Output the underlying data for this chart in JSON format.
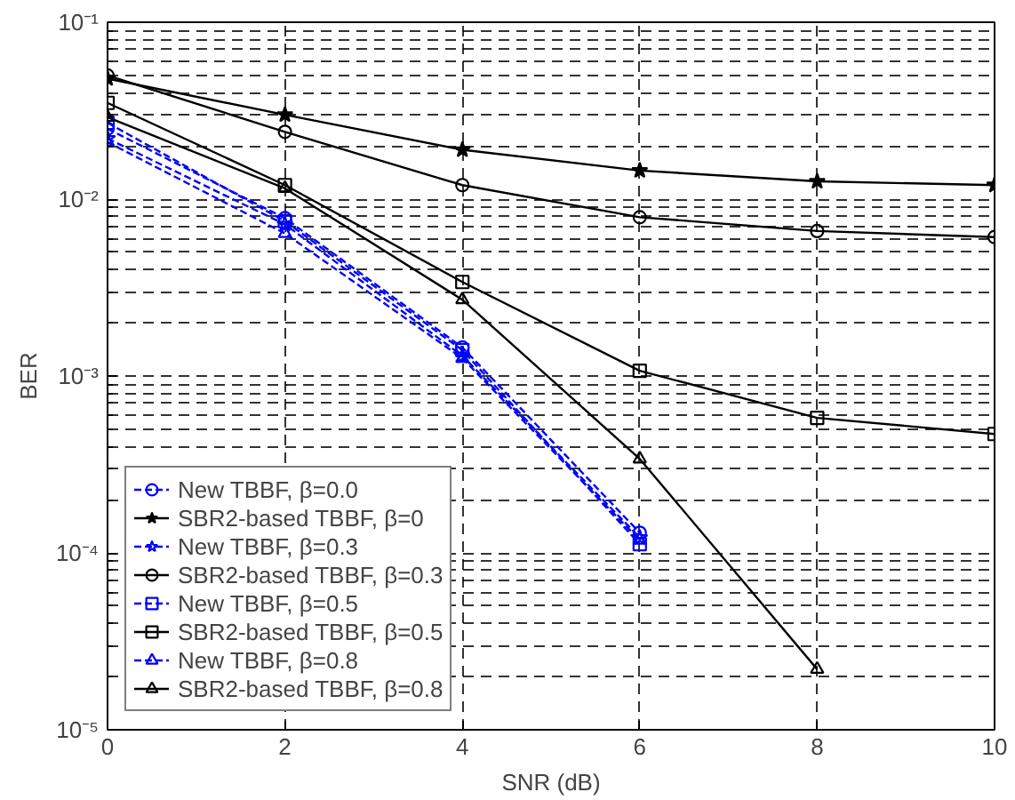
{
  "chart_data": {
    "type": "line",
    "xlabel": "SNR (dB)",
    "ylabel": "BER",
    "log": "y",
    "grid": true,
    "legend": "bottom left",
    "line_style": "solid",
    "x": [
      0,
      2,
      4,
      6,
      8,
      10
    ],
    "xlim": [
      0,
      10
    ],
    "xticks": [
      0,
      2,
      4,
      6,
      8,
      10
    ],
    "ylim": [
      1e-05,
      0.1
    ],
    "yticks": [
      {
        "value": 1e-05,
        "label": "10⁻⁵"
      },
      {
        "value": 0.0001,
        "label": "10⁻⁴"
      },
      {
        "value": 0.001,
        "label": "10⁻³"
      },
      {
        "value": 0.01,
        "label": "10⁻²"
      },
      {
        "value": 0.1,
        "label": "10⁻¹"
      }
    ],
    "series": [
      {
        "name": "New TBBF, β=0.0",
        "color": "#0000ff",
        "marker": "circle",
        "line_style": "dashed",
        "values": [
          0.025,
          0.0078,
          0.00145,
          0.00013,
          null,
          null
        ]
      },
      {
        "name": "SBR2-based TBBF, β=0",
        "color": "#000000",
        "marker": "star",
        "values": [
          0.048,
          0.03,
          0.019,
          0.0145,
          0.0126,
          0.012
        ]
      },
      {
        "name": "New TBBF, β=0.3",
        "color": "#0000ff",
        "marker": "star",
        "line_style": "dashed",
        "values": [
          0.022,
          0.0072,
          0.0013,
          0.000122,
          null,
          null
        ]
      },
      {
        "name": "SBR2-based TBBF, β=0.3",
        "color": "#000000",
        "marker": "circle",
        "values": [
          0.05,
          0.024,
          0.012,
          0.0079,
          0.0066,
          0.0061
        ]
      },
      {
        "name": "New TBBF, β=0.5",
        "color": "#0000ff",
        "marker": "square",
        "line_style": "dashed",
        "values": [
          0.027,
          0.0075,
          0.0014,
          0.000112,
          null,
          null
        ]
      },
      {
        "name": "SBR2-based TBBF, β=0.5",
        "color": "#000000",
        "marker": "square",
        "values": [
          0.035,
          0.012,
          0.0034,
          0.00107,
          0.00058,
          0.00047
        ]
      },
      {
        "name": "New TBBF, β=0.8",
        "color": "#0000ff",
        "marker": "triangle",
        "line_style": "dashed",
        "values": [
          0.021,
          0.0064,
          0.00126,
          0.000118,
          null,
          null
        ]
      },
      {
        "name": "SBR2-based TBBF, β=0.8",
        "color": "#000000",
        "marker": "triangle",
        "values": [
          0.029,
          0.0115,
          0.0027,
          0.00034,
          2.2e-05,
          null
        ]
      }
    ]
  }
}
